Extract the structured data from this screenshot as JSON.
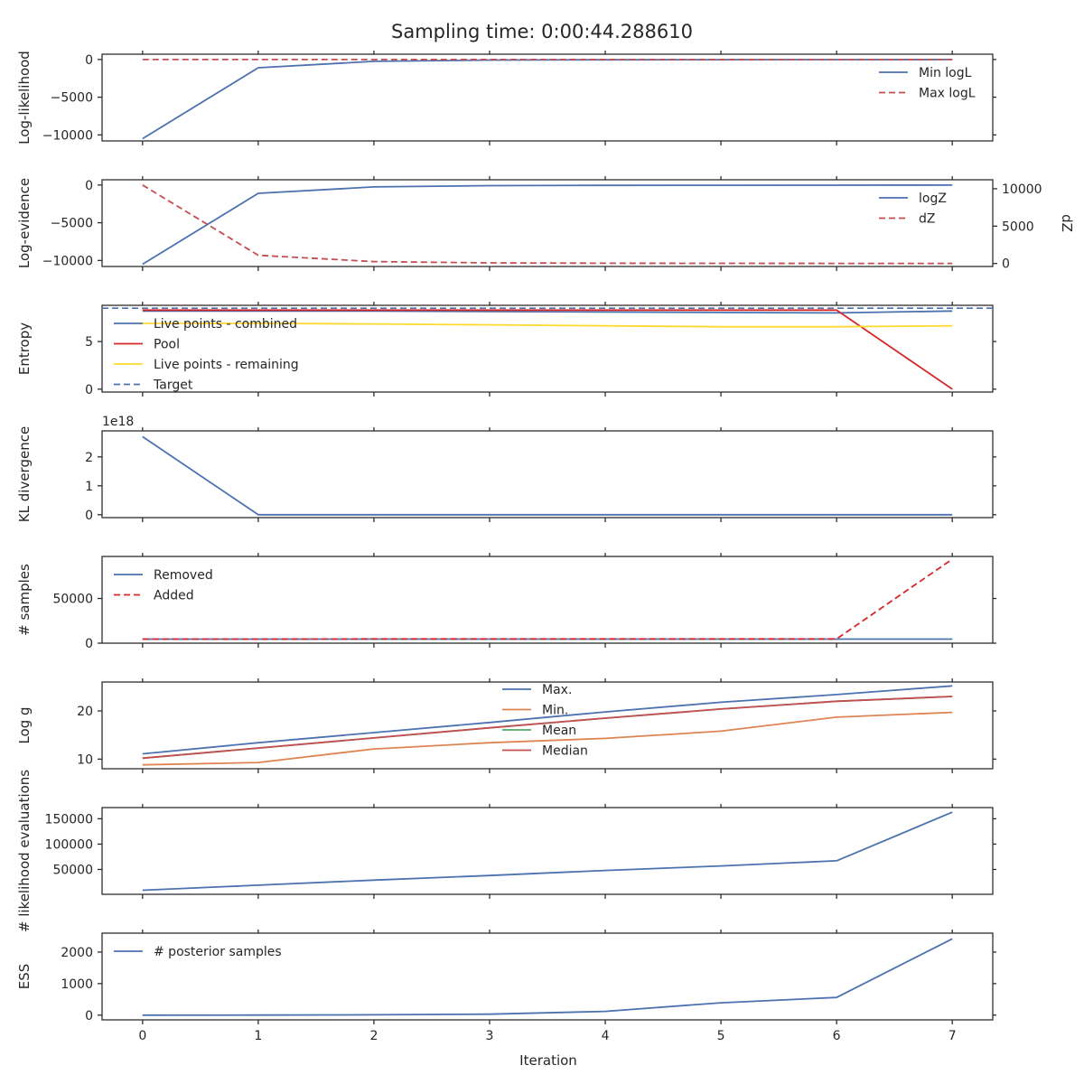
{
  "figure": {
    "title": "Sampling time: 0:00:44.288610",
    "xlabel": "Iteration",
    "x_ticks": [
      0,
      1,
      2,
      3,
      4,
      5,
      6,
      7
    ],
    "xlim": [
      -0.35,
      7.35
    ]
  },
  "chart_data": [
    {
      "type": "line",
      "ylabel": "Log-likelihood",
      "ylim": [
        -10800,
        700
      ],
      "yticks": [
        {
          "v": 0,
          "t": "0"
        },
        {
          "v": -5000,
          "t": "−5000"
        },
        {
          "v": -10000,
          "t": "−10000"
        }
      ],
      "x": [
        0,
        1,
        2,
        3,
        4,
        5,
        6,
        7
      ],
      "series": [
        {
          "name": "Min logL",
          "values": [
            -10500,
            -1100,
            -250,
            -80,
            -40,
            -25,
            -15,
            -10
          ],
          "color": "#4c72b0",
          "dash": "solid"
        },
        {
          "name": "Max logL",
          "values": [
            -5,
            -4,
            -3,
            -2,
            -2,
            -1,
            -1,
            -1
          ],
          "color": "#c44e52",
          "dash": "dashed"
        }
      ],
      "legend": "upper-right"
    },
    {
      "type": "line",
      "ylabel": "Log-evidence",
      "ylim": [
        -10800,
        700
      ],
      "yticks": [
        {
          "v": 0,
          "t": "0"
        },
        {
          "v": -5000,
          "t": "−5000"
        },
        {
          "v": -10000,
          "t": "−10000"
        }
      ],
      "y2label": "dZ",
      "y2lim": [
        -400,
        11200
      ],
      "y2ticks": [
        {
          "v": 0,
          "t": "0"
        },
        {
          "v": 5000,
          "t": "5000"
        },
        {
          "v": 10000,
          "t": "10000"
        }
      ],
      "x": [
        0,
        1,
        2,
        3,
        4,
        5,
        6,
        7
      ],
      "series": [
        {
          "name": "logZ",
          "values": [
            -10500,
            -1100,
            -250,
            -80,
            -40,
            -25,
            -15,
            -10
          ],
          "color": "#4c72b0",
          "dash": "solid",
          "axis": "left"
        },
        {
          "name": "dZ",
          "values": [
            10500,
            1100,
            250,
            80,
            40,
            25,
            15,
            10
          ],
          "color": "#c44e52",
          "dash": "dashed",
          "axis": "right"
        }
      ],
      "legend": "upper-right"
    },
    {
      "type": "line",
      "ylabel": "Entropy",
      "ylim": [
        -0.3,
        8.8
      ],
      "yticks": [
        {
          "v": 0,
          "t": "0"
        },
        {
          "v": 5,
          "t": "5"
        }
      ],
      "x": [
        0,
        1,
        2,
        3,
        4,
        5,
        6,
        7
      ],
      "series": [
        {
          "name": "Live points - combined",
          "values": [
            8.2,
            8.2,
            8.2,
            8.15,
            8.1,
            8.05,
            8.0,
            8.2
          ],
          "color": "#4c72b0",
          "dash": "solid"
        },
        {
          "name": "Pool",
          "values": [
            8.3,
            8.3,
            8.3,
            8.3,
            8.3,
            8.3,
            8.3,
            0.0
          ],
          "color": "#d62728",
          "dash": "solid"
        },
        {
          "name": "Live points - remaining",
          "values": [
            6.9,
            6.9,
            6.85,
            6.75,
            6.65,
            6.55,
            6.55,
            6.65
          ],
          "color": "#ffd92f",
          "dash": "solid"
        }
      ],
      "hlines": [
        {
          "name": "Target",
          "value": 8.5,
          "color": "#4c72b0",
          "dash": "dashed"
        }
      ],
      "legend": "upper-left"
    },
    {
      "type": "line",
      "ylabel": "KL divergence",
      "offset_text": "1e18",
      "ylim": [
        -0.1,
        2.9
      ],
      "yticks": [
        {
          "v": 0,
          "t": "0"
        },
        {
          "v": 1,
          "t": "1"
        },
        {
          "v": 2,
          "t": "2"
        }
      ],
      "x": [
        0,
        1,
        2,
        3,
        4,
        5,
        6,
        7
      ],
      "series": [
        {
          "name": "KL divergence",
          "values": [
            2.7,
            0.0,
            0.0,
            0.0,
            0.0,
            0.0,
            0.0,
            0.0
          ],
          "color": "#4c72b0",
          "dash": "solid"
        }
      ],
      "legend": "none"
    },
    {
      "type": "line",
      "ylabel": "# samples",
      "ylim": [
        0,
        97000
      ],
      "yticks": [
        {
          "v": 0,
          "t": "0"
        },
        {
          "v": 50000,
          "t": "50000"
        }
      ],
      "x": [
        0,
        1,
        2,
        3,
        4,
        5,
        6,
        7
      ],
      "series": [
        {
          "name": "Removed",
          "values": [
            4500,
            4500,
            4500,
            4500,
            4500,
            4500,
            4500,
            4500
          ],
          "color": "#4c72b0",
          "dash": "solid"
        },
        {
          "name": "Added",
          "values": [
            4500,
            4500,
            4700,
            4700,
            4700,
            4700,
            4700,
            94000
          ],
          "color": "#d62728",
          "dash": "dashed"
        }
      ],
      "legend": "upper-left"
    },
    {
      "type": "line",
      "ylabel": "Log g",
      "ylim": [
        8,
        26
      ],
      "yticks": [
        {
          "v": 10,
          "t": "10"
        },
        {
          "v": 20,
          "t": "20"
        }
      ],
      "x": [
        0,
        1,
        2,
        3,
        4,
        5,
        6,
        7
      ],
      "series": [
        {
          "name": "Max.",
          "values": [
            11.1,
            13.4,
            15.5,
            17.6,
            19.8,
            21.8,
            23.4,
            25.2
          ],
          "color": "#4c72b0",
          "dash": "solid"
        },
        {
          "name": "Min.",
          "values": [
            8.8,
            9.3,
            12.1,
            13.4,
            14.3,
            15.8,
            18.7,
            19.7
          ],
          "color": "#dd8452",
          "dash": "solid"
        },
        {
          "name": "Mean",
          "values": [
            10.2,
            12.3,
            14.4,
            16.5,
            18.5,
            20.4,
            22.0,
            23.0
          ],
          "color": "#55a868",
          "dash": "solid"
        },
        {
          "name": "Median",
          "values": [
            10.2,
            12.3,
            14.4,
            16.5,
            18.5,
            20.4,
            22.0,
            23.0
          ],
          "color": "#c44e52",
          "dash": "solid"
        }
      ],
      "legend": "upper-center"
    },
    {
      "type": "line",
      "ylabel": "# likelihood evaluations",
      "ylim": [
        1000,
        172000
      ],
      "yticks": [
        {
          "v": 50000,
          "t": "50000"
        },
        {
          "v": 100000,
          "t": "100000"
        },
        {
          "v": 150000,
          "t": "150000"
        }
      ],
      "x": [
        0,
        1,
        2,
        3,
        4,
        5,
        6,
        7
      ],
      "series": [
        {
          "name": "# likelihood evaluations",
          "values": [
            9000,
            19000,
            29000,
            38000,
            48000,
            57000,
            67000,
            163000
          ],
          "color": "#4c72b0",
          "dash": "solid"
        }
      ],
      "legend": "none"
    },
    {
      "type": "line",
      "ylabel": "ESS",
      "ylim": [
        -150,
        2600
      ],
      "yticks": [
        {
          "v": 0,
          "t": "0"
        },
        {
          "v": 1000,
          "t": "1000"
        },
        {
          "v": 2000,
          "t": "2000"
        }
      ],
      "x": [
        0,
        1,
        2,
        3,
        4,
        5,
        6,
        7
      ],
      "series": [
        {
          "name": "# posterior samples",
          "values": [
            0,
            3,
            10,
            30,
            120,
            390,
            560,
            2420
          ],
          "color": "#4c72b0",
          "dash": "solid"
        }
      ],
      "legend": "upper-left"
    }
  ]
}
